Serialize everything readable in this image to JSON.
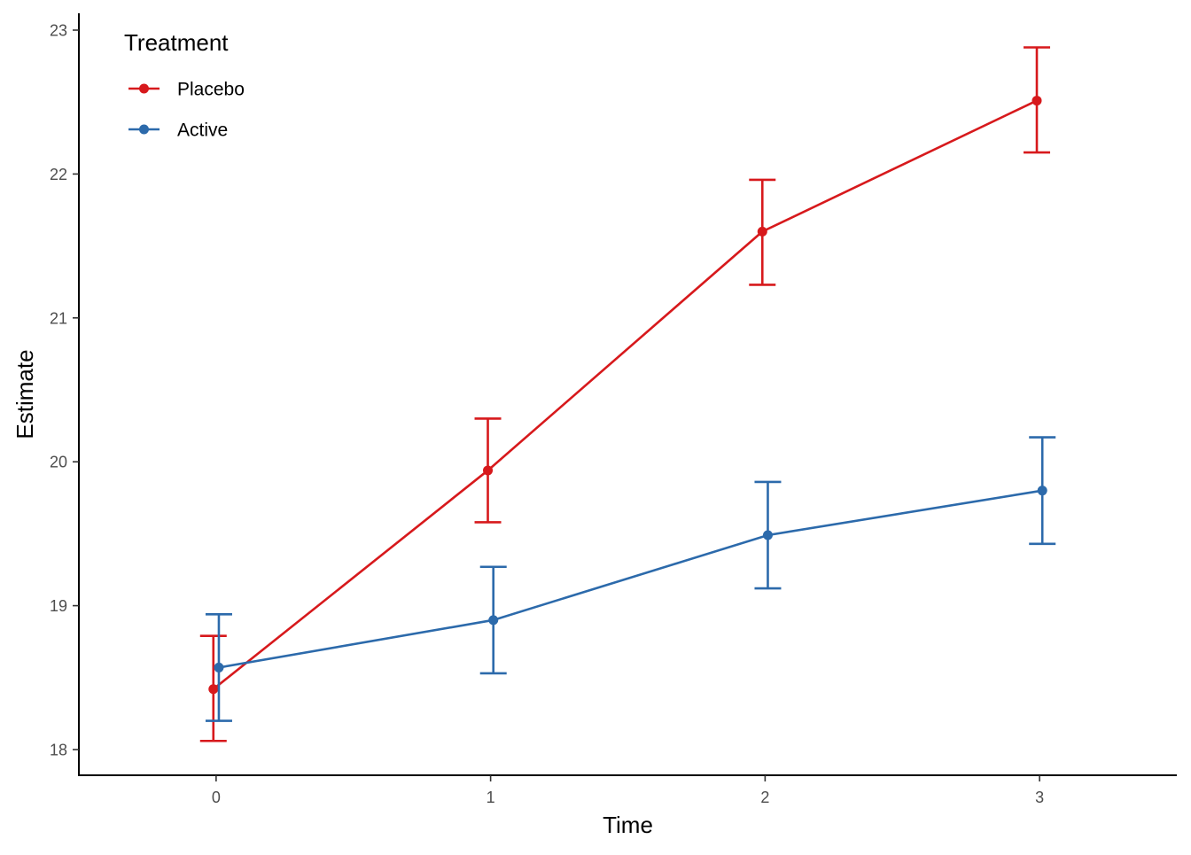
{
  "chart_data": {
    "type": "line",
    "xlabel": "Time",
    "ylabel": "Estimate",
    "x": [
      0,
      1,
      2,
      3
    ],
    "xlim": [
      -0.5,
      3.5
    ],
    "ylim": [
      17.85,
      23.1
    ],
    "x_ticks": [
      "0",
      "1",
      "2",
      "3"
    ],
    "y_ticks": [
      "18",
      "19",
      "20",
      "21",
      "22",
      "23"
    ],
    "grid": false,
    "error_bars": true,
    "legend": {
      "title": "Treatment",
      "position": "top-left"
    },
    "series": [
      {
        "name": "Placebo",
        "color": "#d7191c",
        "values": [
          18.42,
          19.94,
          21.6,
          22.51
        ],
        "lower": [
          18.06,
          19.58,
          21.23,
          22.15
        ],
        "upper": [
          18.79,
          20.3,
          21.96,
          22.88
        ]
      },
      {
        "name": "Active",
        "color": "#2c6aab",
        "values": [
          18.57,
          18.9,
          19.49,
          19.8
        ],
        "lower": [
          18.2,
          18.53,
          19.12,
          19.43
        ],
        "upper": [
          18.94,
          19.27,
          19.86,
          20.17
        ]
      }
    ]
  }
}
